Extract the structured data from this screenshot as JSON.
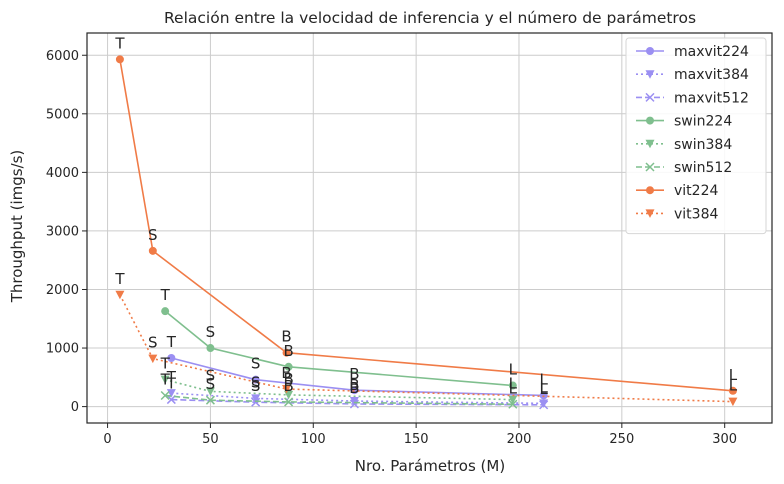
{
  "chart_data": {
    "type": "line",
    "title": "Relación entre la velocidad de inferencia y el número de parámetros",
    "xlabel": "Nro. Parámetros (M)",
    "ylabel": "Throughput (imgs/s)",
    "xlim": [
      -10,
      323
    ],
    "ylim": [
      -280,
      6380
    ],
    "xticks": [
      0,
      50,
      100,
      150,
      200,
      250,
      300
    ],
    "yticks": [
      0,
      1000,
      2000,
      3000,
      4000,
      5000,
      6000
    ],
    "grid": true,
    "legend_position": "top-right",
    "series": [
      {
        "name": "maxvit224",
        "color": "#9b8ff2",
        "dash": "solid",
        "marker": "circle",
        "x": [
          31,
          72,
          120,
          212
        ],
        "y": [
          830,
          460,
          280,
          190
        ],
        "labels": [
          "T",
          "S",
          "B",
          "L"
        ]
      },
      {
        "name": "maxvit384",
        "color": "#9b8ff2",
        "dash": "dotted",
        "marker": "triangle",
        "x": [
          31,
          72,
          120,
          212
        ],
        "y": [
          230,
          140,
          95,
          55
        ],
        "labels": [
          "T",
          "S",
          "B",
          "L"
        ]
      },
      {
        "name": "maxvit512",
        "color": "#9b8ff2",
        "dash": "dashed",
        "marker": "x",
        "x": [
          31,
          72,
          120,
          212
        ],
        "y": [
          120,
          75,
          45,
          30
        ],
        "labels": [
          "T",
          "S",
          "B",
          "L"
        ]
      },
      {
        "name": "swin224",
        "color": "#7fbf8e",
        "dash": "solid",
        "marker": "circle",
        "x": [
          28,
          50,
          88,
          197
        ],
        "y": [
          1630,
          1000,
          680,
          360
        ],
        "labels": [
          "T",
          "S",
          "B",
          "L"
        ]
      },
      {
        "name": "swin384",
        "color": "#7fbf8e",
        "dash": "dotted",
        "marker": "triangle",
        "x": [
          28,
          50,
          88,
          197
        ],
        "y": [
          460,
          260,
          200,
          120
        ],
        "labels": [
          "T",
          "S",
          "B",
          "L"
        ]
      },
      {
        "name": "swin512",
        "color": "#7fbf8e",
        "dash": "dashed",
        "marker": "x",
        "x": [
          28,
          50,
          88,
          197
        ],
        "y": [
          190,
          110,
          80,
          40
        ],
        "labels": [
          "T",
          "S",
          "B",
          "L"
        ]
      },
      {
        "name": "vit224",
        "color": "#f07b47",
        "dash": "solid",
        "marker": "circle",
        "x": [
          6,
          22,
          87,
          304
        ],
        "y": [
          5930,
          2660,
          920,
          270
        ],
        "labels": [
          "T",
          "S",
          "B",
          "L"
        ]
      },
      {
        "name": "vit384",
        "color": "#f07b47",
        "dash": "dotted",
        "marker": "triangle",
        "x": [
          6,
          22,
          87,
          304
        ],
        "y": [
          1910,
          820,
          300,
          85
        ],
        "labels": [
          "T",
          "S",
          "B",
          "L"
        ]
      }
    ]
  }
}
